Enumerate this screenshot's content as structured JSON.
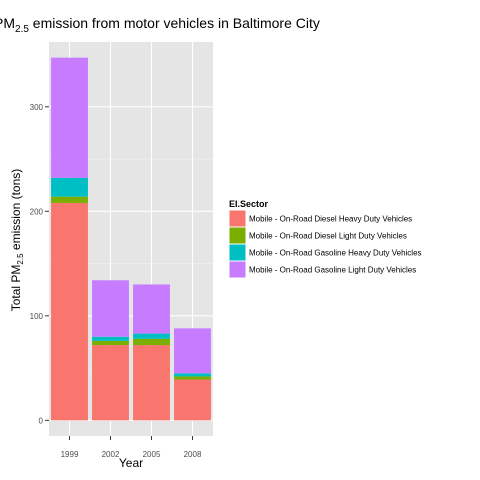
{
  "chart_data": {
    "type": "bar",
    "stacked": true,
    "title": {
      "prefix": "PM",
      "subscript": "2.5",
      "rest": " emission from motor vehicles in Baltimore City"
    },
    "xlabel": "Year",
    "ylabel": {
      "prefix": "Total PM",
      "subscript": "2.5",
      "rest": " emission (tons)"
    },
    "categories": [
      "1999",
      "2002",
      "2005",
      "2008"
    ],
    "ylim": [
      -15,
      362
    ],
    "yticks": [
      0,
      100,
      200,
      300
    ],
    "legend": {
      "title": "EI.Sector",
      "placement": "right"
    },
    "series": [
      {
        "name": "Mobile - On-Road Diesel Heavy Duty Vehicles",
        "color": "#F8766D",
        "values": [
          208,
          72,
          72,
          39
        ]
      },
      {
        "name": "Mobile - On-Road Diesel Light Duty Vehicles",
        "color": "#7CAE00",
        "values": [
          6,
          4,
          6,
          3
        ]
      },
      {
        "name": "Mobile - On-Road Gasoline Heavy Duty Vehicles",
        "color": "#00BFC4",
        "values": [
          18,
          4,
          5,
          3
        ]
      },
      {
        "name": "Mobile - On-Road Gasoline Light Duty Vehicles",
        "color": "#C77CFF",
        "values": [
          115,
          54,
          47,
          43
        ]
      }
    ],
    "grid": true,
    "colors": {
      "panel": "#E5E5E5",
      "grid_major": "#FFFFFF",
      "grid_minor": "#F2F2F2",
      "axis_text": "#4D4D4D"
    }
  }
}
